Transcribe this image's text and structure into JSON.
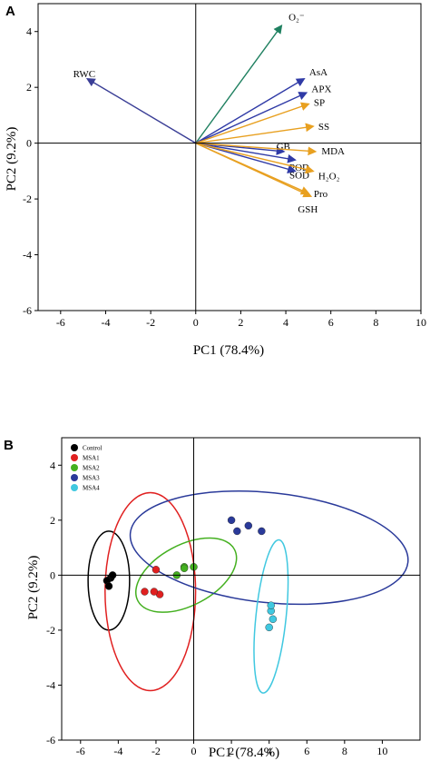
{
  "panel_a_letter": "A",
  "panel_b_letter": "B",
  "chart_data": [
    {
      "type": "biplot",
      "xlabel": "PC1 (78.4%)",
      "ylabel": "PC2 (9.2%)",
      "xlim": [
        -7,
        10
      ],
      "ylim": [
        -6,
        5
      ],
      "xticks": [
        -6,
        -4,
        -2,
        0,
        2,
        4,
        6,
        8,
        10
      ],
      "yticks": [
        -6,
        -4,
        -2,
        0,
        2,
        4
      ],
      "vectors": [
        {
          "label": "RWC",
          "x": -4.8,
          "y": 2.3,
          "color": "#3a3e96"
        },
        {
          "label": "O₂⁻",
          "x": 3.8,
          "y": 4.2,
          "color": "#1f8060"
        },
        {
          "label": "AsA",
          "x": 4.8,
          "y": 2.3,
          "color": "#2f3aa6"
        },
        {
          "label": "APX",
          "x": 4.9,
          "y": 1.8,
          "color": "#2f3aa6"
        },
        {
          "label": "SP",
          "x": 5.0,
          "y": 1.4,
          "color": "#e8a020"
        },
        {
          "label": "SS",
          "x": 5.2,
          "y": 0.6,
          "color": "#e8a020"
        },
        {
          "label": "GB",
          "x": 3.9,
          "y": -0.3,
          "color": "#2f3aa6"
        },
        {
          "label": "MDA",
          "x": 5.3,
          "y": -0.3,
          "color": "#e8a020"
        },
        {
          "label": "POD",
          "x": 4.4,
          "y": -0.6,
          "color": "#2f3aa6"
        },
        {
          "label": "SOD",
          "x": 4.4,
          "y": -1.0,
          "color": "#2f3aa6"
        },
        {
          "label": "H₂O₂",
          "x": 5.2,
          "y": -1.0,
          "color": "#e8a020"
        },
        {
          "label": "Pro",
          "x": 5.0,
          "y": -1.8,
          "color": "#e8a020"
        },
        {
          "label": "GSH",
          "x": 5.1,
          "y": -1.9,
          "color": "#e8a020"
        }
      ]
    },
    {
      "type": "scatter",
      "xlabel": "PC1 (78.4%)",
      "ylabel": "PC2 (9.2%)",
      "xlim": [
        -7,
        12
      ],
      "ylim": [
        -6,
        5
      ],
      "xticks": [
        -6,
        -4,
        -2,
        0,
        2,
        4,
        6,
        8,
        10
      ],
      "yticks": [
        -6,
        -4,
        -2,
        0,
        2,
        4
      ],
      "legend_position": "top-left",
      "series": [
        {
          "name": "Control",
          "color": "#000000",
          "points": [
            [
              -4.4,
              -0.1
            ],
            [
              -4.6,
              -0.2
            ],
            [
              -4.3,
              0.0
            ],
            [
              -4.5,
              -0.4
            ]
          ],
          "ellipse": {
            "cx": -4.5,
            "cy": -0.2,
            "rx": 1.1,
            "ry": 1.8
          }
        },
        {
          "name": "MSA1",
          "color": "#e02020",
          "points": [
            [
              -2.0,
              0.2
            ],
            [
              -2.6,
              -0.6
            ],
            [
              -1.8,
              -0.7
            ],
            [
              -2.1,
              -0.6
            ]
          ],
          "ellipse": {
            "cx": -2.3,
            "cy": -0.6,
            "rx": 2.4,
            "ry": 3.6
          }
        },
        {
          "name": "MSA2",
          "color": "#44b020",
          "points": [
            [
              -0.5,
              0.3
            ],
            [
              0.0,
              0.3
            ],
            [
              -0.9,
              0.0
            ],
            [
              -0.5,
              0.25
            ]
          ],
          "ellipse": {
            "cx": -0.4,
            "cy": 0.0,
            "rx": 2.9,
            "ry": 1.1
          }
        },
        {
          "name": "MSA3",
          "color": "#2a3a9a",
          "points": [
            [
              2.0,
              2.0
            ],
            [
              2.9,
              1.8
            ],
            [
              3.6,
              1.6
            ],
            [
              2.3,
              1.6
            ]
          ],
          "ellipse": {
            "cx": 4.0,
            "cy": 1.0,
            "rx": 7.4,
            "ry": 2.0
          }
        },
        {
          "name": "MSA4",
          "color": "#40c8e0",
          "points": [
            [
              4.1,
              -1.3
            ],
            [
              4.2,
              -1.6
            ],
            [
              4.0,
              -1.9
            ],
            [
              4.1,
              -1.1
            ]
          ],
          "ellipse": {
            "cx": 4.1,
            "cy": -1.5,
            "rx": 0.8,
            "ry": 2.8
          }
        }
      ]
    }
  ]
}
